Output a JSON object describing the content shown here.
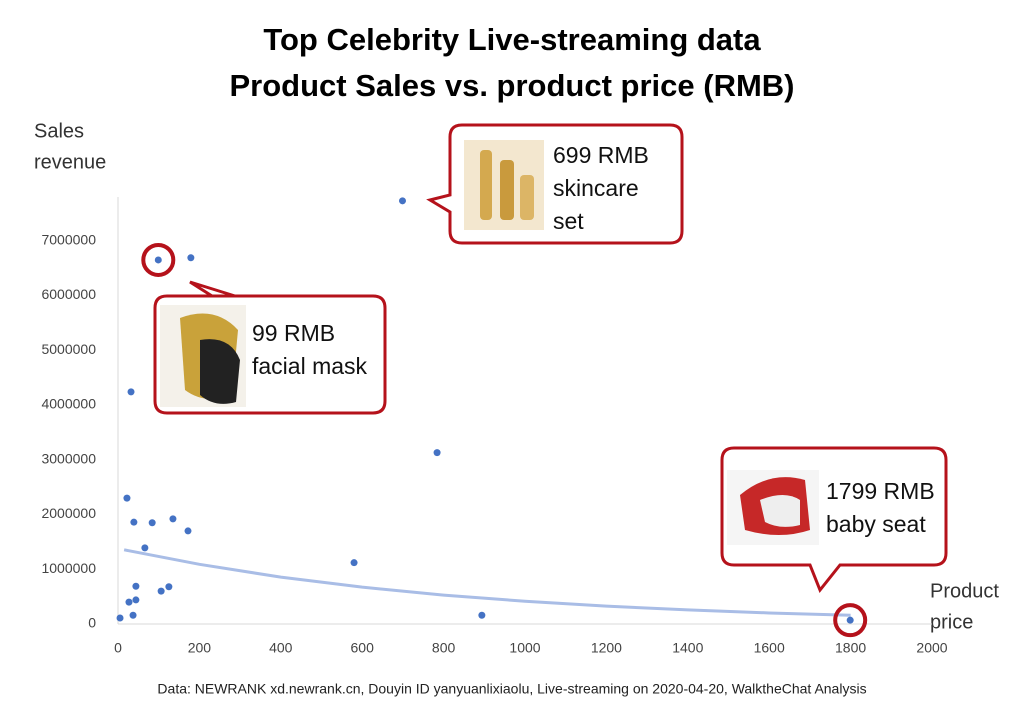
{
  "chart_data": {
    "type": "scatter",
    "title": [
      "Top Celebrity Live-streaming data",
      "Product Sales vs. product price  (RMB)"
    ],
    "x_label": [
      "Product",
      "price"
    ],
    "y_label": [
      "Sales",
      "revenue"
    ],
    "source": "Data: NEWRANK xd.newrank.cn, Douyin ID yanyuanlixiaolu, Live-streaming on 2020-04-20, WalktheChat Analysis",
    "xlim": [
      0,
      2000
    ],
    "ylim": [
      0,
      7800000
    ],
    "xticks": [
      0,
      200,
      400,
      600,
      800,
      1000,
      1200,
      1400,
      1600,
      1800,
      2000
    ],
    "yticks": [
      0,
      1000000,
      2000000,
      3000000,
      4000000,
      5000000,
      6000000,
      7000000
    ],
    "grid": false,
    "color": "#4472c4",
    "x": [
      699,
      99,
      179,
      32,
      784,
      22,
      39,
      84,
      135,
      172,
      66,
      580,
      44,
      125,
      106,
      44,
      27,
      37,
      5,
      894,
      1799
    ],
    "values": [
      7730000,
      6650000,
      6690000,
      4240000,
      3130000,
      2300000,
      1860000,
      1850000,
      1920000,
      1700000,
      1390000,
      1120000,
      690000,
      680000,
      600000,
      440000,
      400000,
      160000,
      110000,
      160000,
      70000
    ],
    "trendline": {
      "color": "#a9bde6",
      "x": [
        15,
        200,
        400,
        600,
        800,
        1000,
        1200,
        1400,
        1600,
        1800
      ],
      "values": [
        1355000,
        1090000,
        856000,
        673000,
        528000,
        416000,
        327000,
        257000,
        202000,
        159000
      ]
    },
    "annotations": [
      {
        "lines": [
          "699 RMB",
          "skincare",
          "set"
        ]
      },
      {
        "lines": [
          "99 RMB",
          "facial mask"
        ]
      },
      {
        "lines": [
          "1799 RMB",
          "baby seat"
        ]
      }
    ]
  }
}
